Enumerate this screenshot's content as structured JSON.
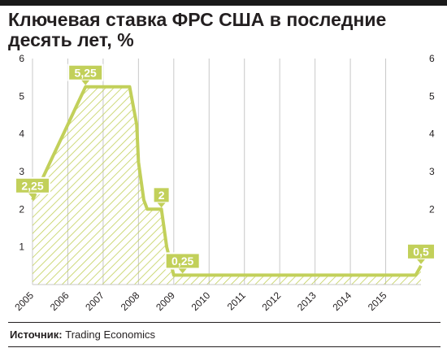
{
  "chart_data": {
    "type": "area",
    "title": "Ключевая ставка ФРС США в последние десять лет, %",
    "xlabel": "",
    "ylabel": "",
    "x": [
      2005.0,
      2005.5,
      2006.0,
      2006.25,
      2006.5,
      2006.75,
      2007.0,
      2007.25,
      2007.5,
      2007.75,
      2007.95,
      2008.0,
      2008.15,
      2008.25,
      2008.5,
      2008.65,
      2008.8,
      2009.0,
      2010.0,
      2011.0,
      2012.0,
      2013.0,
      2014.0,
      2015.0,
      2015.85,
      2016.0
    ],
    "values": [
      2.25,
      3.25,
      4.25,
      4.75,
      5.25,
      5.25,
      5.25,
      5.25,
      5.25,
      5.25,
      4.25,
      3.25,
      2.25,
      2.0,
      2.0,
      2.0,
      1.0,
      0.25,
      0.25,
      0.25,
      0.25,
      0.25,
      0.25,
      0.25,
      0.25,
      0.5
    ],
    "xlim": [
      2005,
      2016
    ],
    "ylim": [
      0,
      6
    ],
    "x_ticks": [
      "2005",
      "2006",
      "2007",
      "2008",
      "2009",
      "2010",
      "2011",
      "2012",
      "2013",
      "2014",
      "2015"
    ],
    "y_ticks_left": [
      "1",
      "2",
      "3",
      "4",
      "5",
      "6"
    ],
    "y_ticks_right": [
      "1",
      "2",
      "3",
      "4",
      "5",
      "6"
    ],
    "grid": "vertical",
    "annotations": [
      {
        "label": "2,25",
        "x": 2005.0,
        "y": 2.25
      },
      {
        "label": "5,25",
        "x": 2006.5,
        "y": 5.25
      },
      {
        "label": "2",
        "x": 2008.65,
        "y": 2.0
      },
      {
        "label": "0,25",
        "x": 2009.25,
        "y": 0.25
      },
      {
        "label": "0,5",
        "x": 2016.0,
        "y": 0.5
      }
    ]
  },
  "colors": {
    "line": "#c2d05a",
    "hatch": "#c2d05a",
    "grid": "#c8c8c8",
    "label_bg": "#c2d05a",
    "label_text": "#ffffff",
    "axis_text": "#231f20"
  },
  "source": {
    "label": "Источник:",
    "text": "Trading Economics"
  }
}
